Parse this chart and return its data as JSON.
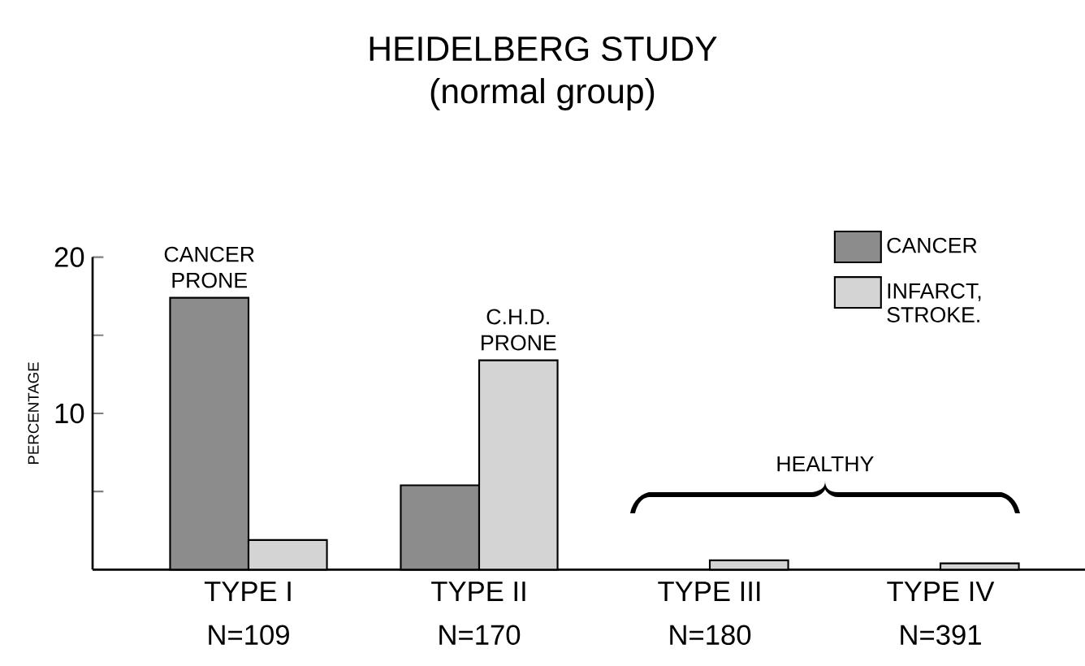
{
  "chart_data": {
    "type": "bar",
    "title": "HEIDELBERG STUDY",
    "subtitle": "(normal group)",
    "ylabel": "PERCENTAGE",
    "categories": [
      "TYPE I",
      "TYPE II",
      "TYPE III",
      "TYPE IV"
    ],
    "series": [
      {
        "name": "CANCER",
        "color": "#8c8c8c",
        "values": [
          17.4,
          5.4,
          null,
          null
        ]
      },
      {
        "name": "INFARCT, STROKE.",
        "color": "#d4d4d4",
        "values": [
          1.9,
          13.4,
          0.6,
          0.4
        ]
      }
    ],
    "ylim": [
      0,
      20
    ],
    "yticks": [
      {
        "value": 5,
        "label": null
      },
      10,
      {
        "value": 15,
        "label": null
      },
      20
    ],
    "annotations": [
      {
        "text": "CANCER PRONE",
        "x": "TYPE I",
        "y": 17.4
      },
      {
        "text": "C.H.D. PRONE",
        "x": "TYPE II",
        "y": 13.4
      },
      "HEALTHY",
      "N=109",
      "N=170",
      "N=180",
      "N=391"
    ],
    "legend": "top right",
    "grid": false
  }
}
